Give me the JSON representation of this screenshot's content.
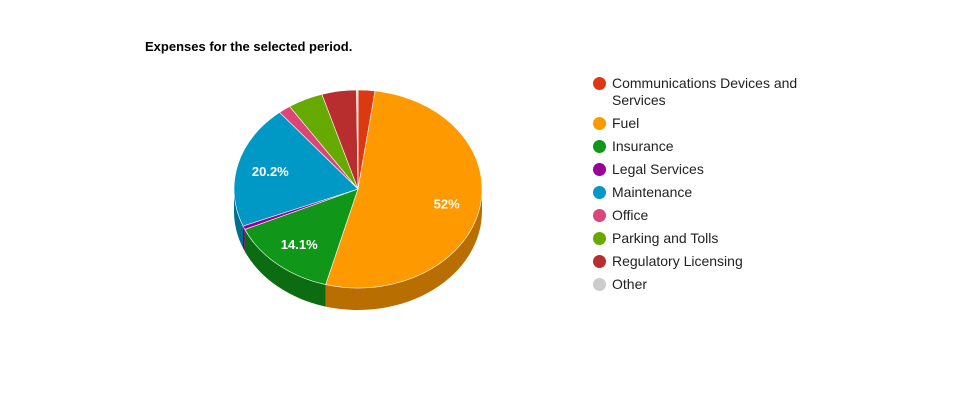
{
  "chart_data": {
    "type": "pie",
    "style": "3d",
    "title": "Expenses for the selected period.",
    "legend_position": "right",
    "slices": [
      {
        "name": "Communications Devices and Services",
        "value": 2.2,
        "color": "#dc3912",
        "label": ""
      },
      {
        "name": "Fuel",
        "value": 52,
        "color": "#ff9900",
        "label": "52%"
      },
      {
        "name": "Insurance",
        "value": 14.1,
        "color": "#109618",
        "label": "14.1%"
      },
      {
        "name": "Legal Services",
        "value": 0.6,
        "color": "#990099",
        "label": ""
      },
      {
        "name": "Maintenance",
        "value": 20.2,
        "color": "#0099c6",
        "label": "20.2%"
      },
      {
        "name": "Office",
        "value": 1.6,
        "color": "#dd4477",
        "label": ""
      },
      {
        "name": "Parking and Tolls",
        "value": 4.6,
        "color": "#66aa00",
        "label": ""
      },
      {
        "name": "Regulatory Licensing",
        "value": 4.5,
        "color": "#b82e2e",
        "label": ""
      },
      {
        "name": "Other",
        "value": 0.2,
        "color": "#cccccc",
        "label": ""
      }
    ]
  }
}
